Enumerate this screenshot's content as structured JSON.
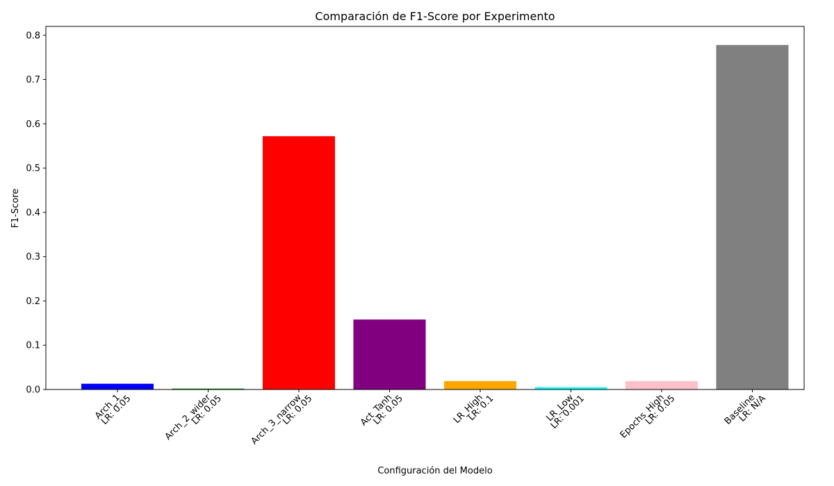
{
  "chart_data": {
    "type": "bar",
    "title": "Comparación de F1-Score por Experimento",
    "xlabel": "Configuración del Modelo",
    "ylabel": "F1-Score",
    "ylim": [
      0,
      0.82
    ],
    "yticks": [
      "0.0",
      "0.1",
      "0.2",
      "0.3",
      "0.4",
      "0.5",
      "0.6",
      "0.7",
      "0.8"
    ],
    "grid": false,
    "categories": [
      {
        "line1": "Arch_1",
        "line2": "LR: 0.05"
      },
      {
        "line1": "Arch_2_wider",
        "line2": "LR: 0.05"
      },
      {
        "line1": "Arch_3_narrow",
        "line2": "LR: 0.05"
      },
      {
        "line1": "Act_Tanh",
        "line2": "LR: 0.05"
      },
      {
        "line1": "LR_High",
        "line2": "LR: 0.1"
      },
      {
        "line1": "LR_Low",
        "line2": "LR: 0.001"
      },
      {
        "line1": "Epochs_High",
        "line2": "LR: 0.05"
      },
      {
        "line1": "Baseline",
        "line2": "LR: N/A"
      }
    ],
    "values": [
      0.013,
      0.002,
      0.572,
      0.158,
      0.019,
      0.005,
      0.019,
      0.778
    ],
    "colors": [
      "#0000ff",
      "#008000",
      "#ff0000",
      "#800080",
      "#ffa500",
      "#00ffff",
      "#ffc0cb",
      "#808080"
    ]
  }
}
